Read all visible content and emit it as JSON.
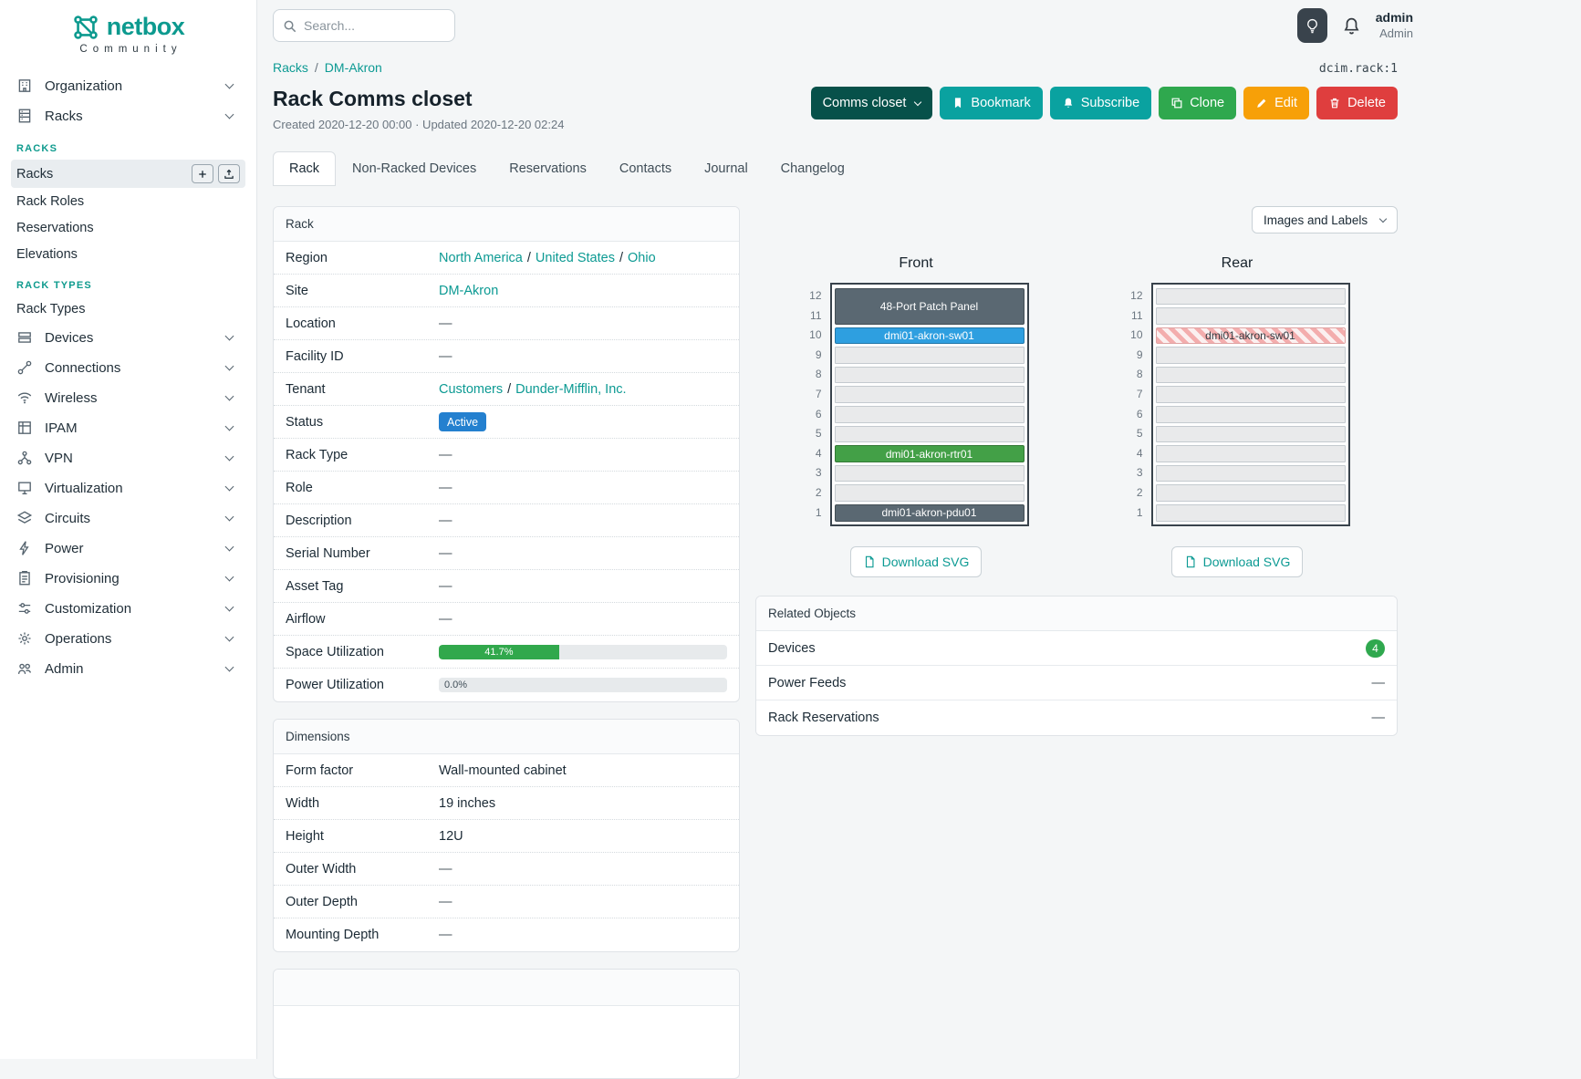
{
  "brand": {
    "name": "netbox",
    "subtitle": "Community"
  },
  "topbar": {
    "search_placeholder": "Search...",
    "username": "admin",
    "role": "Admin"
  },
  "sidebar": {
    "items": [
      {
        "label": "Organization",
        "icon": "building-icon"
      },
      {
        "label": "Racks",
        "icon": "rack-icon",
        "expanded": true,
        "groups": [
          {
            "header": "RACKS",
            "items": [
              {
                "label": "Racks",
                "active": true,
                "buttons": [
                  "add",
                  "import"
                ]
              },
              {
                "label": "Rack Roles"
              },
              {
                "label": "Reservations"
              },
              {
                "label": "Elevations"
              }
            ]
          },
          {
            "header": "RACK TYPES",
            "items": [
              {
                "label": "Rack Types"
              }
            ]
          }
        ]
      },
      {
        "label": "Devices",
        "icon": "device-icon"
      },
      {
        "label": "Connections",
        "icon": "connections-icon"
      },
      {
        "label": "Wireless",
        "icon": "wireless-icon"
      },
      {
        "label": "IPAM",
        "icon": "ipam-icon"
      },
      {
        "label": "VPN",
        "icon": "vpn-icon"
      },
      {
        "label": "Virtualization",
        "icon": "virtualization-icon"
      },
      {
        "label": "Circuits",
        "icon": "circuits-icon"
      },
      {
        "label": "Power",
        "icon": "power-icon"
      },
      {
        "label": "Provisioning",
        "icon": "provisioning-icon"
      },
      {
        "label": "Customization",
        "icon": "customization-icon"
      },
      {
        "label": "Operations",
        "icon": "operations-icon"
      },
      {
        "label": "Admin",
        "icon": "admin-icon"
      }
    ]
  },
  "breadcrumb": {
    "items": [
      "Racks",
      "DM-Akron"
    ],
    "separator": "/"
  },
  "object_id": "dcim.rack:1",
  "page": {
    "title": "Rack Comms closet",
    "meta": "Created 2020-12-20 00:00 · Updated 2020-12-20 02:24"
  },
  "actions": {
    "context": "Comms closet",
    "bookmark": "Bookmark",
    "subscribe": "Subscribe",
    "clone": "Clone",
    "edit": "Edit",
    "delete": "Delete"
  },
  "tabs": [
    {
      "label": "Rack",
      "active": true
    },
    {
      "label": "Non-Racked Devices"
    },
    {
      "label": "Reservations"
    },
    {
      "label": "Contacts"
    },
    {
      "label": "Journal"
    },
    {
      "label": "Changelog"
    }
  ],
  "rack_card": {
    "title": "Rack",
    "rows": [
      {
        "label": "Region",
        "type": "links",
        "links": [
          "North America",
          "United States",
          "Ohio"
        ]
      },
      {
        "label": "Site",
        "type": "links",
        "links": [
          "DM-Akron"
        ]
      },
      {
        "label": "Location",
        "type": "dash",
        "value": "—"
      },
      {
        "label": "Facility ID",
        "type": "dash",
        "value": "—"
      },
      {
        "label": "Tenant",
        "type": "links",
        "links": [
          "Customers",
          "Dunder-Mifflin, Inc."
        ]
      },
      {
        "label": "Status",
        "type": "badge",
        "value": "Active"
      },
      {
        "label": "Rack Type",
        "type": "dash",
        "value": "—"
      },
      {
        "label": "Role",
        "type": "dash",
        "value": "—"
      },
      {
        "label": "Description",
        "type": "dash",
        "value": "—"
      },
      {
        "label": "Serial Number",
        "type": "dash",
        "value": "—"
      },
      {
        "label": "Asset Tag",
        "type": "dash",
        "value": "—"
      },
      {
        "label": "Airflow",
        "type": "dash",
        "value": "—"
      },
      {
        "label": "Space Utilization",
        "type": "progress",
        "percent": 41.7,
        "text": "41.7%"
      },
      {
        "label": "Power Utilization",
        "type": "progress",
        "percent": 0,
        "text": "0.0%"
      }
    ]
  },
  "dimensions_card": {
    "title": "Dimensions",
    "rows": [
      {
        "label": "Form factor",
        "type": "text",
        "value": "Wall-mounted cabinet"
      },
      {
        "label": "Width",
        "type": "text",
        "value": "19 inches"
      },
      {
        "label": "Height",
        "type": "text",
        "value": "12U"
      },
      {
        "label": "Outer Width",
        "type": "dash",
        "value": "—"
      },
      {
        "label": "Outer Depth",
        "type": "dash",
        "value": "—"
      },
      {
        "label": "Mounting Depth",
        "type": "dash",
        "value": "—"
      }
    ]
  },
  "elevation_controls": {
    "select_label": "Images and Labels",
    "download_label": "Download SVG"
  },
  "elevations": [
    {
      "title": "Front",
      "units_total": 12,
      "devices": [
        {
          "top_u": 12,
          "span": 2,
          "label": "48-Port Patch Panel",
          "style": "slate"
        },
        {
          "top_u": 10,
          "span": 1,
          "label": "dmi01-akron-sw01",
          "style": "blue"
        },
        {
          "top_u": 4,
          "span": 1,
          "label": "dmi01-akron-rtr01",
          "style": "green"
        },
        {
          "top_u": 1,
          "span": 1,
          "label": "dmi01-akron-pdu01",
          "style": "slate"
        }
      ]
    },
    {
      "title": "Rear",
      "units_total": 12,
      "devices": [
        {
          "top_u": 10,
          "span": 1,
          "label": "dmi01-akron-sw01",
          "style": "striped"
        }
      ]
    }
  ],
  "related_objects": {
    "title": "Related Objects",
    "rows": [
      {
        "label": "Devices",
        "badge": "4"
      },
      {
        "label": "Power Feeds",
        "value": "—"
      },
      {
        "label": "Rack Reservations",
        "value": "—"
      }
    ]
  },
  "colors": {
    "brand-teal": "#0d9a8f",
    "link-teal": "#0c9a93",
    "sidebar-header-teal": "#0f9b8e",
    "btn-dark-teal": "#07514a",
    "btn-teal": "#0aa2a0",
    "btn-green": "#2fa84e",
    "btn-orange": "#f7a008",
    "btn-red": "#df3e3e",
    "badge-blue": "#2480cf",
    "progress-green": "#31a84c",
    "device-slate": "#5a6872",
    "device-blue": "#2e9fe0",
    "device-green": "#43a047",
    "count-badge-green": "#2fa84e"
  }
}
